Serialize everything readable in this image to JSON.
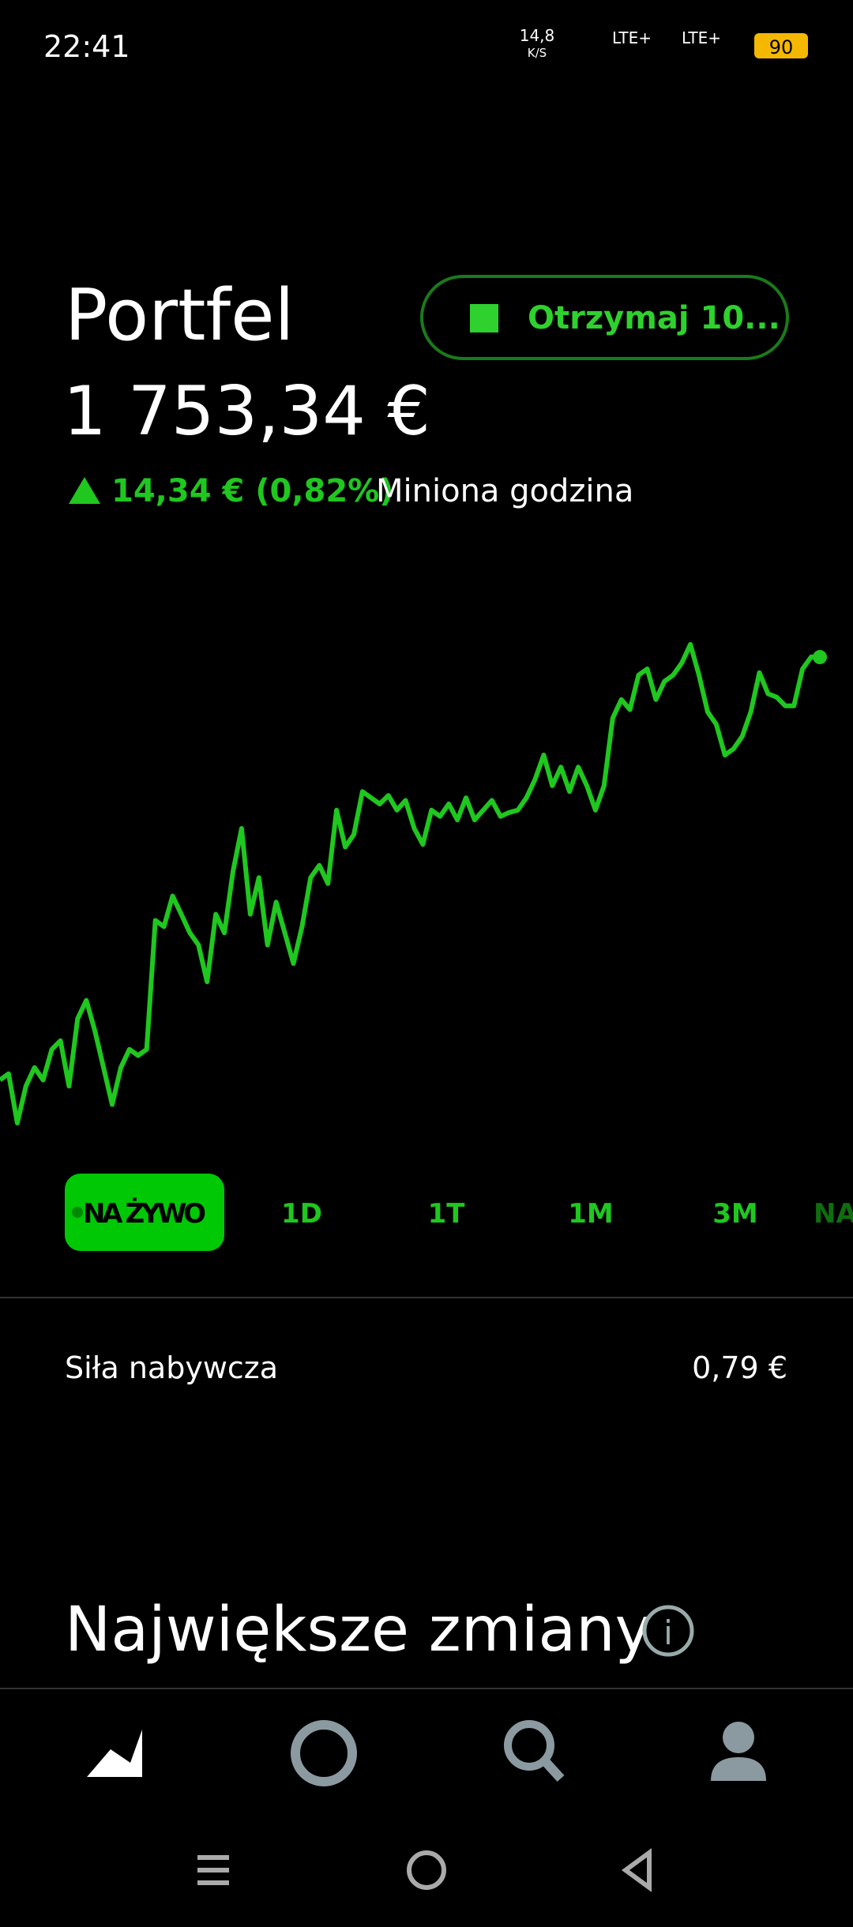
{
  "status_bar": {
    "time": "22:41",
    "speed": "14,8",
    "speed_unit": "K/S",
    "network_1": "LTE+",
    "network_2": "LTE+",
    "battery": "90"
  },
  "header": {
    "title": "Portfel",
    "value": "1 753,34 €",
    "change": "14,34 € (0,82%)",
    "period": "Miniona godzina",
    "button": "Otrzymaj 10..."
  },
  "chart_data": {
    "type": "line",
    "color": "#1fc71f",
    "values": [
      1739.0,
      1739.21,
      1737.54,
      1738.79,
      1739.42,
      1739.0,
      1740.04,
      1740.33,
      1738.79,
      1741.08,
      1741.7,
      1740.66,
      1739.42,
      1738.17,
      1739.42,
      1740.04,
      1739.83,
      1740.04,
      1744.41,
      1744.2,
      1745.24,
      1744.62,
      1743.99,
      1743.58,
      1742.33,
      1744.62,
      1743.99,
      1746.07,
      1747.53,
      1744.62,
      1745.86,
      1743.58,
      1745.03,
      1743.99,
      1742.95,
      1744.2,
      1745.86,
      1746.28,
      1745.66,
      1748.15,
      1746.9,
      1747.32,
      1748.78,
      1748.57,
      1748.36,
      1748.65,
      1748.15,
      1748.48,
      1747.53,
      1746.99,
      1748.15,
      1747.94,
      1748.36,
      1747.82,
      1748.57,
      1747.82,
      1748.15,
      1748.48,
      1747.94,
      1748.07,
      1748.15,
      1748.57,
      1749.19,
      1750.02,
      1748.98,
      1749.61,
      1748.78,
      1749.61,
      1748.98,
      1748.15,
      1748.98,
      1751.27,
      1751.9,
      1751.56,
      1752.73,
      1752.94,
      1751.9,
      1752.52,
      1752.73,
      1753.14,
      1753.77,
      1752.73,
      1751.48,
      1751.06,
      1750.02,
      1750.23,
      1750.65,
      1751.48,
      1752.81,
      1752.1,
      1751.98,
      1751.69,
      1751.69,
      1752.94,
      1753.35,
      1753.34
    ]
  },
  "tabs": [
    "NA ŻYWO",
    "1D",
    "1T",
    "1M",
    "3M",
    "NA JĄ"
  ],
  "buying_power": {
    "label": "Siła nabywcza",
    "value": "0,79 €"
  },
  "section": {
    "title": "Największe zmiany"
  }
}
